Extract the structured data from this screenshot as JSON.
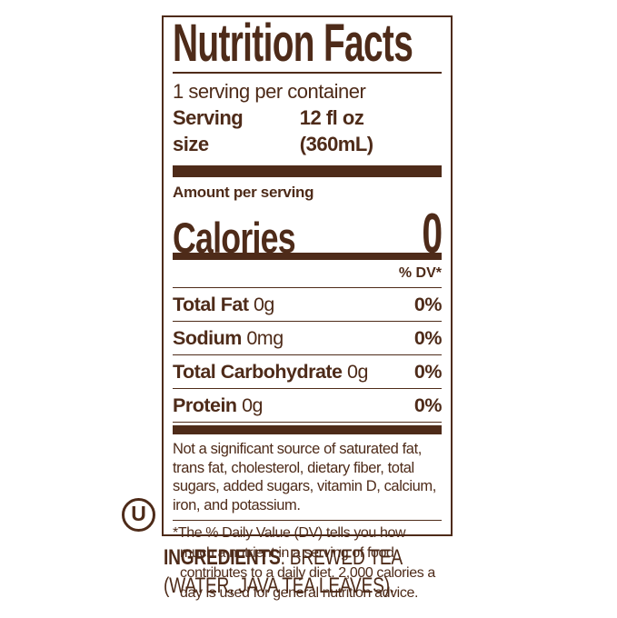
{
  "colors": {
    "brown": "#4e2b19",
    "background": "#ffffff"
  },
  "nutrition_label": {
    "title": "Nutrition Facts",
    "servings_per_container": "1 serving per container",
    "serving_size_label": "Serving size",
    "serving_size_value": "12 fl oz (360mL)",
    "amount_per_serving_label": "Amount per serving",
    "calories_label": "Calories",
    "calories_value": "0",
    "daily_value_header": "% DV*",
    "nutrient_rows": [
      {
        "name": "Total Fat",
        "amount": "0g",
        "daily_value": "0%"
      },
      {
        "name": "Sodium",
        "amount": "0mg",
        "daily_value": "0%"
      },
      {
        "name": "Total Carbohydrate",
        "amount": "0g",
        "daily_value": "0%"
      },
      {
        "name": "Protein",
        "amount": "0g",
        "daily_value": "0%"
      }
    ],
    "not_significant_note": "Not a significant source of saturated fat, trans fat, cholesterol, dietary fiber, total sugars, added sugars, vitamin D, calcium, iron, and potassium.",
    "daily_value_footnote": "*The % Daily Value (DV) tells you how much a nutrient in a serving of food contributes to a daily diet. 2,000 calories a day is used for general nutrition advice."
  },
  "kosher_mark": {
    "letter": "U"
  },
  "ingredients": {
    "label": "INGREDIENTS",
    "after_label": ": BREWED TEA",
    "line2": "(WATER, JAVA TEA LEAVES)."
  }
}
